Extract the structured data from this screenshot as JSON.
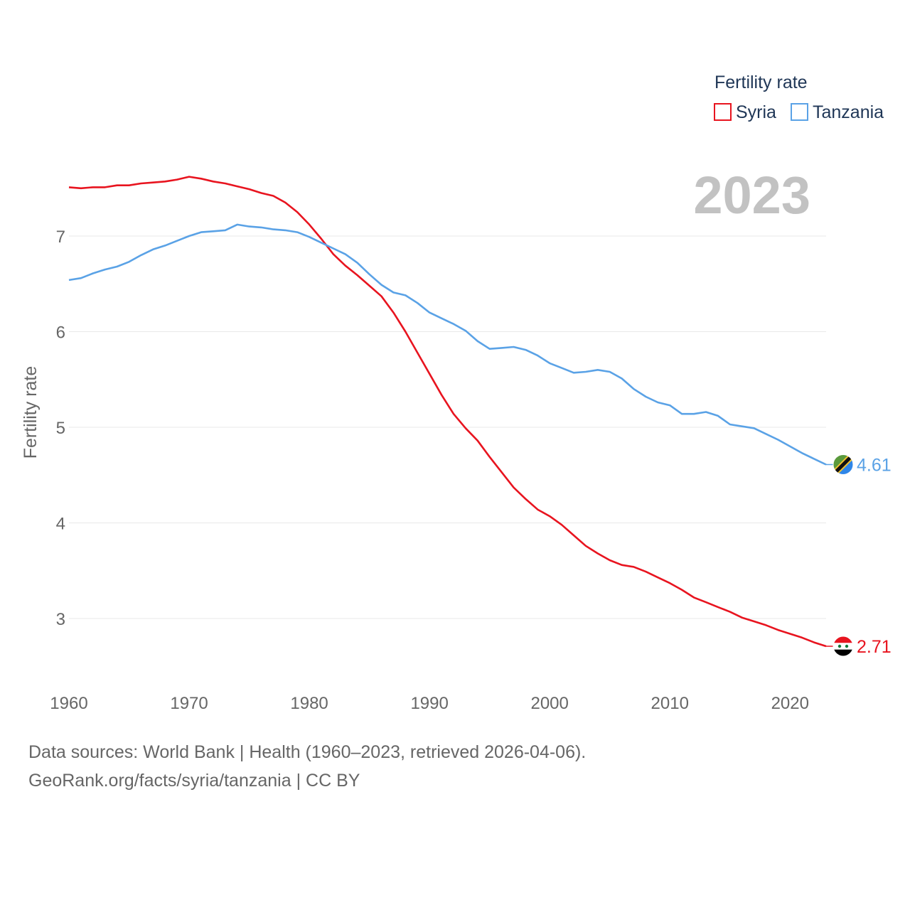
{
  "chart_data": {
    "type": "line",
    "title": "Fertility rate",
    "current_year": "2023",
    "xlabel": "",
    "ylabel": "Fertility rate",
    "xlim": [
      1960,
      2023
    ],
    "ylim": [
      2.5,
      7.8
    ],
    "x_ticks": [
      1960,
      1970,
      1980,
      1990,
      2000,
      2010,
      2020
    ],
    "y_ticks": [
      3,
      4,
      5,
      6,
      7
    ],
    "grid": true,
    "legend_position": "top-right",
    "x": [
      1960,
      1961,
      1962,
      1963,
      1964,
      1965,
      1966,
      1967,
      1968,
      1969,
      1970,
      1971,
      1972,
      1973,
      1974,
      1975,
      1976,
      1977,
      1978,
      1979,
      1980,
      1981,
      1982,
      1983,
      1984,
      1985,
      1986,
      1987,
      1988,
      1989,
      1990,
      1991,
      1992,
      1993,
      1994,
      1995,
      1996,
      1997,
      1998,
      1999,
      2000,
      2001,
      2002,
      2003,
      2004,
      2005,
      2006,
      2007,
      2008,
      2009,
      2010,
      2011,
      2012,
      2013,
      2014,
      2015,
      2016,
      2017,
      2018,
      2019,
      2020,
      2021,
      2022,
      2023
    ],
    "series": [
      {
        "name": "Syria",
        "color": "#e8141f",
        "end_label": "2.71",
        "values": [
          7.51,
          7.5,
          7.51,
          7.51,
          7.53,
          7.53,
          7.55,
          7.56,
          7.57,
          7.59,
          7.62,
          7.6,
          7.57,
          7.55,
          7.52,
          7.49,
          7.45,
          7.42,
          7.35,
          7.25,
          7.12,
          6.97,
          6.81,
          6.69,
          6.59,
          6.48,
          6.37,
          6.2,
          6.0,
          5.78,
          5.56,
          5.34,
          5.14,
          4.99,
          4.86,
          4.69,
          4.53,
          4.37,
          4.25,
          4.14,
          4.07,
          3.98,
          3.87,
          3.76,
          3.68,
          3.61,
          3.56,
          3.54,
          3.49,
          3.43,
          3.37,
          3.3,
          3.22,
          3.17,
          3.12,
          3.07,
          3.01,
          2.97,
          2.93,
          2.88,
          2.84,
          2.8,
          2.75,
          2.71
        ]
      },
      {
        "name": "Tanzania",
        "color": "#5aa2e6",
        "end_label": "4.61",
        "values": [
          6.54,
          6.56,
          6.61,
          6.65,
          6.68,
          6.73,
          6.8,
          6.86,
          6.9,
          6.95,
          7.0,
          7.04,
          7.05,
          7.06,
          7.12,
          7.1,
          7.09,
          7.07,
          7.06,
          7.04,
          6.99,
          6.93,
          6.87,
          6.81,
          6.72,
          6.6,
          6.49,
          6.41,
          6.38,
          6.3,
          6.2,
          6.14,
          6.08,
          6.01,
          5.9,
          5.82,
          5.83,
          5.84,
          5.81,
          5.75,
          5.67,
          5.62,
          5.57,
          5.58,
          5.6,
          5.58,
          5.51,
          5.4,
          5.32,
          5.26,
          5.23,
          5.14,
          5.14,
          5.16,
          5.12,
          5.03,
          5.01,
          4.99,
          4.93,
          4.87,
          4.8,
          4.73,
          4.67,
          4.61
        ]
      }
    ]
  },
  "source": {
    "line1": "Data sources: World Bank | Health (1960–2023, retrieved 2026-04-06).",
    "line2": "GeoRank.org/facts/syria/tanzania | CC BY"
  }
}
